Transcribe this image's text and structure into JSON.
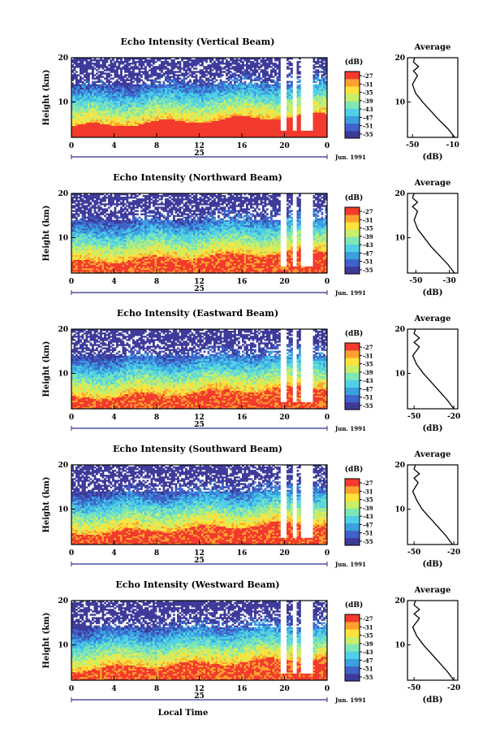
{
  "chart_data": [
    {
      "type": "heatmap",
      "title": "Echo Intensity (Vertical Beam)",
      "ylabel": "Height (km)",
      "x_ticks": [
        "0",
        "4",
        "8",
        "12",
        "16",
        "20",
        "0"
      ],
      "xlim": [
        0,
        24
      ],
      "y_ticks": [
        "20",
        "10"
      ],
      "ylim": [
        2,
        20
      ],
      "day_label": "25",
      "month_label": "Jun. 1991",
      "colorbar": {
        "title": "(dB)",
        "ticks": [
          "-27",
          "-31",
          "-35",
          "-39",
          "-43",
          "-47",
          "-51",
          "-55"
        ],
        "range": [
          -57,
          -25
        ]
      },
      "average_profile": {
        "title": "Average",
        "xlabel": "(dB)",
        "x_ticks": [
          "-50",
          "-10"
        ],
        "xlim": [
          -55,
          -5
        ],
        "y_ticks": [
          "20",
          "10"
        ],
        "ylim": [
          2,
          20
        ],
        "height_km": [
          2,
          4,
          6,
          8,
          10,
          12,
          14,
          16,
          17,
          18,
          19,
          20
        ],
        "intensity_db": [
          -8,
          -15,
          -24,
          -32,
          -40,
          -47,
          -50,
          -45,
          -49,
          -44,
          -49,
          -48
        ]
      }
    },
    {
      "type": "heatmap",
      "title": "Echo Intensity (Northward Beam)",
      "ylabel": "Height (km)",
      "x_ticks": [
        "0",
        "4",
        "8",
        "12",
        "16",
        "20",
        "0"
      ],
      "xlim": [
        0,
        24
      ],
      "y_ticks": [
        "20",
        "10"
      ],
      "ylim": [
        2,
        20
      ],
      "day_label": "25",
      "month_label": "Jun. 1991",
      "colorbar": {
        "title": "(dB)",
        "ticks": [
          "-27",
          "-31",
          "-35",
          "-39",
          "-43",
          "-47",
          "-51",
          "-55"
        ],
        "range": [
          -57,
          -25
        ]
      },
      "average_profile": {
        "title": "Average",
        "xlabel": "(dB)",
        "x_ticks": [
          "-50",
          "-30"
        ],
        "xlim": [
          -55,
          -25
        ],
        "y_ticks": [
          "20",
          "10"
        ],
        "ylim": [
          2,
          20
        ],
        "height_km": [
          2,
          4,
          6,
          8,
          10,
          12,
          14,
          16,
          17,
          18,
          19,
          20
        ],
        "intensity_db": [
          -27,
          -31,
          -36,
          -41,
          -45,
          -49,
          -51,
          -49,
          -52,
          -49,
          -52,
          -51
        ]
      }
    },
    {
      "type": "heatmap",
      "title": "Echo Intensity (Eastward Beam)",
      "ylabel": "Height (km)",
      "x_ticks": [
        "0",
        "4",
        "8",
        "12",
        "16",
        "20",
        "0"
      ],
      "xlim": [
        0,
        24
      ],
      "y_ticks": [
        "20",
        "10"
      ],
      "ylim": [
        2,
        20
      ],
      "day_label": "25",
      "month_label": "Jun. 1991",
      "colorbar": {
        "title": "(dB)",
        "ticks": [
          "-27",
          "-31",
          "-35",
          "-39",
          "-43",
          "-47",
          "-51",
          "-55"
        ],
        "range": [
          -57,
          -25
        ]
      },
      "average_profile": {
        "title": "Average",
        "xlabel": "(dB)",
        "x_ticks": [
          "-50",
          "-20"
        ],
        "xlim": [
          -55,
          -17
        ],
        "y_ticks": [
          "20",
          "10"
        ],
        "ylim": [
          2,
          20
        ],
        "height_km": [
          2,
          4,
          6,
          8,
          10,
          12,
          14,
          16,
          17,
          18,
          19,
          20
        ],
        "intensity_db": [
          -20,
          -25,
          -31,
          -37,
          -43,
          -48,
          -51,
          -46,
          -50,
          -46,
          -50,
          -49
        ]
      }
    },
    {
      "type": "heatmap",
      "title": "Echo Intensity (Southward Beam)",
      "ylabel": "Height (km)",
      "x_ticks": [
        "0",
        "4",
        "8",
        "12",
        "16",
        "20",
        "0"
      ],
      "xlim": [
        0,
        24
      ],
      "y_ticks": [
        "20",
        "10"
      ],
      "ylim": [
        2,
        20
      ],
      "day_label": "25",
      "month_label": "Jun. 1991",
      "colorbar": {
        "title": "(dB)",
        "ticks": [
          "-27",
          "-31",
          "-35",
          "-39",
          "-43",
          "-47",
          "-51",
          "-55"
        ],
        "range": [
          -57,
          -25
        ]
      },
      "average_profile": {
        "title": "Average",
        "xlabel": "(dB)",
        "x_ticks": [
          "-50",
          "-20"
        ],
        "xlim": [
          -55,
          -17
        ],
        "y_ticks": [
          "20",
          "10"
        ],
        "ylim": [
          2,
          20
        ],
        "height_km": [
          2,
          4,
          6,
          8,
          10,
          12,
          14,
          16,
          17,
          18,
          19,
          20
        ],
        "intensity_db": [
          -21,
          -26,
          -32,
          -38,
          -44,
          -48,
          -51,
          -47,
          -50,
          -46,
          -50,
          -49
        ]
      }
    },
    {
      "type": "heatmap",
      "title": "Echo Intensity (Westward Beam)",
      "ylabel": "Height (km)",
      "x_ticks": [
        "0",
        "4",
        "8",
        "12",
        "16",
        "20",
        "0"
      ],
      "xlim": [
        0,
        24
      ],
      "y_ticks": [
        "20",
        "10"
      ],
      "ylim": [
        2,
        20
      ],
      "day_label": "25",
      "month_label": "Jun. 1991",
      "colorbar": {
        "title": "(dB)",
        "ticks": [
          "-27",
          "-31",
          "-35",
          "-39",
          "-43",
          "-47",
          "-51",
          "-55"
        ],
        "range": [
          -57,
          -25
        ]
      },
      "average_profile": {
        "title": "Average",
        "xlabel": "(dB)",
        "x_ticks": [
          "-50",
          "-20"
        ],
        "xlim": [
          -55,
          -17
        ],
        "y_ticks": [
          "20",
          "10"
        ],
        "ylim": [
          2,
          20
        ],
        "height_km": [
          2,
          4,
          6,
          8,
          10,
          12,
          14,
          16,
          17,
          18,
          19,
          20
        ],
        "intensity_db": [
          -20,
          -25,
          -31,
          -37,
          -43,
          -48,
          -51,
          -46,
          -50,
          -46,
          -50,
          -49
        ]
      }
    }
  ],
  "xlabel": "Local Time",
  "colors": {
    "colormap": [
      "#3d3a9a",
      "#3f63c9",
      "#3aa0e0",
      "#4fd0e6",
      "#7fe6b4",
      "#c6ef6a",
      "#ffe23c",
      "#ffa12e",
      "#f23a2d"
    ],
    "no_data": "#ffffff",
    "axis": "#000000",
    "time_axis": "#2b2f8f"
  }
}
